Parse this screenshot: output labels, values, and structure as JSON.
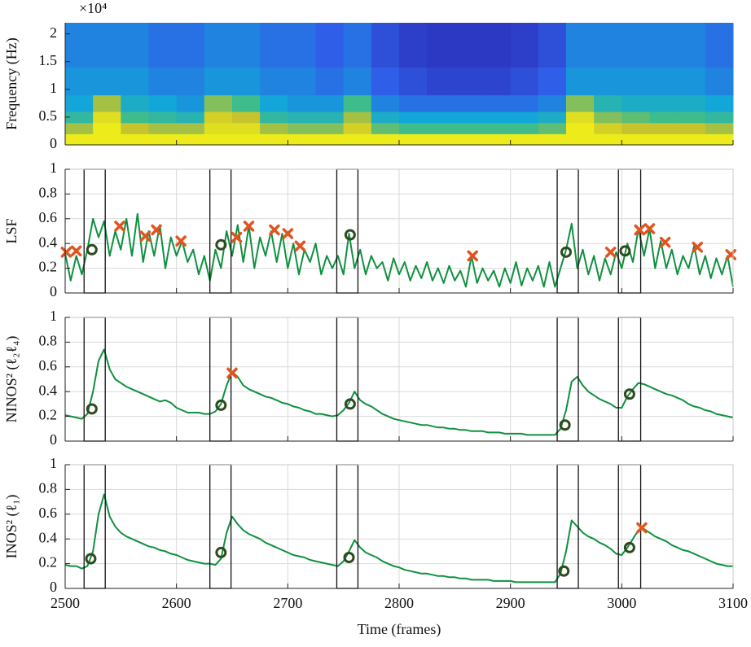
{
  "chart_data": [
    {
      "type": "heatmap",
      "ylabel": "Frequency (Hz)",
      "annotation": "×10⁴",
      "xlim": [
        2500,
        3100
      ],
      "xticks": [
        2500,
        2600,
        2700,
        2800,
        2900,
        3000,
        3100
      ],
      "ylim": [
        0,
        2.2
      ],
      "yticks": [
        0,
        0.5,
        1,
        1.5,
        2
      ],
      "grid": false,
      "colormap": [
        "#2a1fa8",
        "#2f5fe8",
        "#12a7d8",
        "#3ebc8c",
        "#c7c32c",
        "#f9f914"
      ],
      "x_bins": [
        2500,
        2525,
        2550,
        2575,
        2600,
        2625,
        2650,
        2675,
        2700,
        2725,
        2750,
        2775,
        2800,
        2825,
        2850,
        2875,
        2900,
        2925,
        2950,
        2975,
        3000,
        3025,
        3050,
        3075,
        3100
      ],
      "y_bins": [
        0,
        0.2,
        0.4,
        0.6,
        0.9,
        1.4,
        2.2
      ],
      "z": [
        [
          0.95,
          0.95,
          0.95,
          0.95,
          0.95,
          0.95,
          0.95,
          0.95,
          0.95,
          0.95,
          0.95,
          0.95,
          0.95,
          0.95,
          0.95,
          0.95,
          0.95,
          0.95,
          0.95,
          0.95,
          0.95,
          0.95,
          0.95,
          0.95
        ],
        [
          0.75,
          0.95,
          0.8,
          0.75,
          0.75,
          0.9,
          0.9,
          0.75,
          0.7,
          0.7,
          0.85,
          0.65,
          0.6,
          0.6,
          0.6,
          0.6,
          0.6,
          0.65,
          0.95,
          0.85,
          0.8,
          0.8,
          0.8,
          0.75
        ],
        [
          0.55,
          0.9,
          0.6,
          0.55,
          0.5,
          0.85,
          0.8,
          0.55,
          0.5,
          0.5,
          0.75,
          0.45,
          0.4,
          0.4,
          0.4,
          0.4,
          0.4,
          0.45,
          0.9,
          0.7,
          0.65,
          0.6,
          0.6,
          0.55
        ],
        [
          0.4,
          0.75,
          0.45,
          0.4,
          0.35,
          0.7,
          0.6,
          0.4,
          0.35,
          0.35,
          0.6,
          0.3,
          0.25,
          0.25,
          0.25,
          0.25,
          0.25,
          0.3,
          0.7,
          0.5,
          0.45,
          0.45,
          0.45,
          0.4
        ],
        [
          0.35,
          0.35,
          0.35,
          0.3,
          0.3,
          0.35,
          0.35,
          0.3,
          0.3,
          0.25,
          0.3,
          0.2,
          0.15,
          0.12,
          0.12,
          0.12,
          0.15,
          0.2,
          0.35,
          0.35,
          0.35,
          0.35,
          0.35,
          0.3
        ],
        [
          0.3,
          0.3,
          0.3,
          0.25,
          0.25,
          0.3,
          0.3,
          0.25,
          0.25,
          0.2,
          0.25,
          0.15,
          0.1,
          0.08,
          0.08,
          0.08,
          0.1,
          0.15,
          0.3,
          0.3,
          0.3,
          0.3,
          0.3,
          0.25
        ]
      ]
    },
    {
      "type": "line",
      "ylabel": "LSF",
      "xlim": [
        2500,
        3100
      ],
      "xticks": [
        2500,
        2600,
        2700,
        2800,
        2900,
        3000,
        3100
      ],
      "ylim": [
        0,
        1
      ],
      "yticks": [
        0,
        0.2,
        0.4,
        0.6,
        0.8,
        1
      ],
      "grid": true,
      "x": [
        2500,
        2505,
        2510,
        2515,
        2520,
        2525,
        2530,
        2535,
        2540,
        2545,
        2550,
        2555,
        2560,
        2565,
        2570,
        2575,
        2580,
        2585,
        2590,
        2595,
        2600,
        2605,
        2610,
        2615,
        2620,
        2625,
        2630,
        2635,
        2640,
        2645,
        2650,
        2655,
        2660,
        2665,
        2670,
        2675,
        2680,
        2685,
        2690,
        2695,
        2700,
        2705,
        2710,
        2715,
        2720,
        2725,
        2730,
        2735,
        2740,
        2745,
        2750,
        2755,
        2760,
        2765,
        2770,
        2775,
        2780,
        2785,
        2790,
        2795,
        2800,
        2805,
        2810,
        2815,
        2820,
        2825,
        2830,
        2835,
        2840,
        2845,
        2850,
        2855,
        2860,
        2865,
        2870,
        2875,
        2880,
        2885,
        2890,
        2895,
        2900,
        2905,
        2910,
        2915,
        2920,
        2925,
        2930,
        2935,
        2940,
        2945,
        2950,
        2955,
        2960,
        2965,
        2970,
        2975,
        2980,
        2985,
        2990,
        2995,
        3000,
        3005,
        3010,
        3015,
        3020,
        3025,
        3030,
        3035,
        3040,
        3045,
        3050,
        3055,
        3060,
        3065,
        3070,
        3075,
        3080,
        3085,
        3090,
        3095,
        3100
      ],
      "series": [
        {
          "color": "#109040",
          "values": [
            0.32,
            0.1,
            0.3,
            0.15,
            0.35,
            0.6,
            0.45,
            0.58,
            0.3,
            0.5,
            0.35,
            0.6,
            0.3,
            0.64,
            0.25,
            0.5,
            0.3,
            0.55,
            0.2,
            0.45,
            0.3,
            0.42,
            0.25,
            0.35,
            0.15,
            0.3,
            0.1,
            0.35,
            0.2,
            0.5,
            0.3,
            0.55,
            0.25,
            0.54,
            0.2,
            0.45,
            0.3,
            0.5,
            0.25,
            0.48,
            0.2,
            0.4,
            0.15,
            0.35,
            0.25,
            0.4,
            0.15,
            0.3,
            0.2,
            0.3,
            0.15,
            0.48,
            0.2,
            0.35,
            0.15,
            0.3,
            0.2,
            0.25,
            0.1,
            0.28,
            0.15,
            0.25,
            0.1,
            0.22,
            0.12,
            0.25,
            0.1,
            0.2,
            0.08,
            0.22,
            0.1,
            0.18,
            0.05,
            0.3,
            0.08,
            0.2,
            0.1,
            0.18,
            0.05,
            0.2,
            0.08,
            0.25,
            0.06,
            0.2,
            0.1,
            0.22,
            0.05,
            0.25,
            0.05,
            0.2,
            0.35,
            0.56,
            0.2,
            0.35,
            0.15,
            0.3,
            0.1,
            0.28,
            0.15,
            0.33,
            0.2,
            0.4,
            0.25,
            0.52,
            0.3,
            0.52,
            0.2,
            0.42,
            0.2,
            0.35,
            0.15,
            0.3,
            0.2,
            0.38,
            0.15,
            0.3,
            0.12,
            0.28,
            0.15,
            0.3,
            0.05
          ]
        }
      ],
      "boxes": [
        [
          2517,
          2536
        ],
        [
          2630,
          2649
        ],
        [
          2744,
          2763
        ],
        [
          2942,
          2961
        ],
        [
          2997,
          3017
        ]
      ],
      "circles": {
        "color": "#2e4a1e",
        "x": [
          2524,
          2640,
          2756,
          2950,
          3003
        ],
        "y": [
          0.35,
          0.39,
          0.47,
          0.33,
          0.34
        ]
      },
      "crosses": {
        "color": "#e0541f",
        "x": [
          2501,
          2510,
          2549,
          2572,
          2582,
          2604,
          2654,
          2665,
          2688,
          2700,
          2711,
          2866,
          2990,
          3016,
          3025,
          3039,
          3068,
          3098
        ],
        "y": [
          0.33,
          0.34,
          0.54,
          0.46,
          0.51,
          0.42,
          0.45,
          0.54,
          0.51,
          0.48,
          0.38,
          0.3,
          0.33,
          0.51,
          0.52,
          0.41,
          0.37,
          0.31
        ]
      }
    },
    {
      "type": "line",
      "ylabel": "NINOS² (ℓ₂ℓ₄)",
      "xlim": [
        2500,
        3100
      ],
      "xticks": [
        2500,
        2600,
        2700,
        2800,
        2900,
        3000,
        3100
      ],
      "ylim": [
        0,
        1
      ],
      "yticks": [
        0,
        0.2,
        0.4,
        0.6,
        0.8,
        1
      ],
      "grid": true,
      "x": [
        2500,
        2505,
        2510,
        2515,
        2520,
        2525,
        2530,
        2535,
        2540,
        2545,
        2550,
        2555,
        2560,
        2565,
        2570,
        2575,
        2580,
        2585,
        2590,
        2595,
        2600,
        2605,
        2610,
        2615,
        2620,
        2625,
        2630,
        2635,
        2640,
        2645,
        2650,
        2655,
        2660,
        2665,
        2670,
        2675,
        2680,
        2685,
        2690,
        2695,
        2700,
        2705,
        2710,
        2715,
        2720,
        2725,
        2730,
        2735,
        2740,
        2745,
        2750,
        2755,
        2760,
        2765,
        2770,
        2775,
        2780,
        2785,
        2790,
        2795,
        2800,
        2805,
        2810,
        2815,
        2820,
        2825,
        2830,
        2835,
        2840,
        2845,
        2850,
        2855,
        2860,
        2865,
        2870,
        2875,
        2880,
        2885,
        2890,
        2895,
        2900,
        2905,
        2910,
        2915,
        2920,
        2925,
        2930,
        2935,
        2940,
        2945,
        2950,
        2955,
        2960,
        2965,
        2970,
        2975,
        2980,
        2985,
        2990,
        2995,
        3000,
        3005,
        3010,
        3015,
        3020,
        3025,
        3030,
        3035,
        3040,
        3045,
        3050,
        3055,
        3060,
        3065,
        3070,
        3075,
        3080,
        3085,
        3090,
        3095,
        3100
      ],
      "series": [
        {
          "color": "#109040",
          "values": [
            0.21,
            0.2,
            0.19,
            0.18,
            0.22,
            0.4,
            0.65,
            0.74,
            0.58,
            0.5,
            0.47,
            0.44,
            0.42,
            0.4,
            0.38,
            0.36,
            0.34,
            0.32,
            0.33,
            0.31,
            0.27,
            0.25,
            0.23,
            0.23,
            0.23,
            0.22,
            0.22,
            0.24,
            0.3,
            0.45,
            0.56,
            0.52,
            0.45,
            0.42,
            0.4,
            0.38,
            0.36,
            0.35,
            0.33,
            0.31,
            0.3,
            0.28,
            0.27,
            0.25,
            0.24,
            0.22,
            0.22,
            0.21,
            0.2,
            0.21,
            0.25,
            0.31,
            0.4,
            0.33,
            0.3,
            0.28,
            0.25,
            0.22,
            0.2,
            0.18,
            0.17,
            0.16,
            0.15,
            0.14,
            0.13,
            0.13,
            0.12,
            0.11,
            0.11,
            0.1,
            0.1,
            0.09,
            0.09,
            0.08,
            0.08,
            0.08,
            0.07,
            0.07,
            0.07,
            0.06,
            0.06,
            0.06,
            0.06,
            0.05,
            0.05,
            0.05,
            0.05,
            0.05,
            0.05,
            0.1,
            0.25,
            0.48,
            0.52,
            0.45,
            0.4,
            0.37,
            0.34,
            0.32,
            0.3,
            0.27,
            0.27,
            0.36,
            0.42,
            0.47,
            0.46,
            0.44,
            0.42,
            0.4,
            0.38,
            0.37,
            0.35,
            0.33,
            0.3,
            0.28,
            0.27,
            0.25,
            0.24,
            0.22,
            0.21,
            0.2,
            0.19
          ]
        }
      ],
      "boxes": [
        [
          2517,
          2536
        ],
        [
          2630,
          2649
        ],
        [
          2744,
          2763
        ],
        [
          2942,
          2961
        ],
        [
          2997,
          3017
        ]
      ],
      "circles": {
        "color": "#2e4a1e",
        "x": [
          2524,
          2640,
          2756,
          2949,
          3007
        ],
        "y": [
          0.26,
          0.29,
          0.3,
          0.13,
          0.38
        ]
      },
      "crosses": {
        "color": "#e0541f",
        "x": [
          2650
        ],
        "y": [
          0.55
        ]
      }
    },
    {
      "type": "line",
      "ylabel": "INOS² (ℓ₁)",
      "xlabel": "Time (frames)",
      "xlim": [
        2500,
        3100
      ],
      "xticks": [
        2500,
        2600,
        2700,
        2800,
        2900,
        3000,
        3100
      ],
      "ylim": [
        0,
        1
      ],
      "yticks": [
        0,
        0.2,
        0.4,
        0.6,
        0.8,
        1
      ],
      "grid": true,
      "x": [
        2500,
        2505,
        2510,
        2515,
        2520,
        2525,
        2530,
        2535,
        2540,
        2545,
        2550,
        2555,
        2560,
        2565,
        2570,
        2575,
        2580,
        2585,
        2590,
        2595,
        2600,
        2605,
        2610,
        2615,
        2620,
        2625,
        2630,
        2635,
        2640,
        2645,
        2650,
        2655,
        2660,
        2665,
        2670,
        2675,
        2680,
        2685,
        2690,
        2695,
        2700,
        2705,
        2710,
        2715,
        2720,
        2725,
        2730,
        2735,
        2740,
        2745,
        2750,
        2755,
        2760,
        2765,
        2770,
        2775,
        2780,
        2785,
        2790,
        2795,
        2800,
        2805,
        2810,
        2815,
        2820,
        2825,
        2830,
        2835,
        2840,
        2845,
        2850,
        2855,
        2860,
        2865,
        2870,
        2875,
        2880,
        2885,
        2890,
        2895,
        2900,
        2905,
        2910,
        2915,
        2920,
        2925,
        2930,
        2935,
        2940,
        2945,
        2950,
        2955,
        2960,
        2965,
        2970,
        2975,
        2980,
        2985,
        2990,
        2995,
        3000,
        3005,
        3010,
        3015,
        3020,
        3025,
        3030,
        3035,
        3040,
        3045,
        3050,
        3055,
        3060,
        3065,
        3070,
        3075,
        3080,
        3085,
        3090,
        3095,
        3100
      ],
      "series": [
        {
          "color": "#109040",
          "values": [
            0.19,
            0.18,
            0.18,
            0.16,
            0.18,
            0.3,
            0.6,
            0.76,
            0.58,
            0.5,
            0.45,
            0.42,
            0.4,
            0.38,
            0.36,
            0.34,
            0.33,
            0.31,
            0.3,
            0.28,
            0.27,
            0.25,
            0.23,
            0.22,
            0.21,
            0.2,
            0.2,
            0.19,
            0.24,
            0.45,
            0.58,
            0.52,
            0.47,
            0.44,
            0.42,
            0.4,
            0.37,
            0.35,
            0.33,
            0.31,
            0.29,
            0.27,
            0.26,
            0.25,
            0.23,
            0.22,
            0.21,
            0.2,
            0.19,
            0.18,
            0.22,
            0.3,
            0.39,
            0.33,
            0.29,
            0.27,
            0.25,
            0.22,
            0.2,
            0.18,
            0.17,
            0.15,
            0.14,
            0.13,
            0.12,
            0.12,
            0.11,
            0.1,
            0.1,
            0.09,
            0.09,
            0.08,
            0.08,
            0.07,
            0.07,
            0.07,
            0.07,
            0.06,
            0.06,
            0.06,
            0.06,
            0.05,
            0.05,
            0.05,
            0.05,
            0.05,
            0.05,
            0.05,
            0.05,
            0.12,
            0.3,
            0.55,
            0.5,
            0.45,
            0.42,
            0.4,
            0.37,
            0.35,
            0.32,
            0.28,
            0.27,
            0.33,
            0.4,
            0.47,
            0.48,
            0.45,
            0.42,
            0.4,
            0.38,
            0.35,
            0.33,
            0.31,
            0.3,
            0.28,
            0.26,
            0.24,
            0.22,
            0.2,
            0.19,
            0.18,
            0.18
          ]
        }
      ],
      "boxes": [
        [
          2517,
          2536
        ],
        [
          2630,
          2649
        ],
        [
          2744,
          2763
        ],
        [
          2942,
          2961
        ],
        [
          2997,
          3017
        ]
      ],
      "circles": {
        "color": "#2e4a1e",
        "x": [
          2523,
          2640,
          2755,
          2948,
          3007
        ],
        "y": [
          0.24,
          0.29,
          0.25,
          0.14,
          0.33
        ]
      },
      "crosses": {
        "color": "#e0541f",
        "x": [
          3018
        ],
        "y": [
          0.49
        ]
      }
    }
  ]
}
